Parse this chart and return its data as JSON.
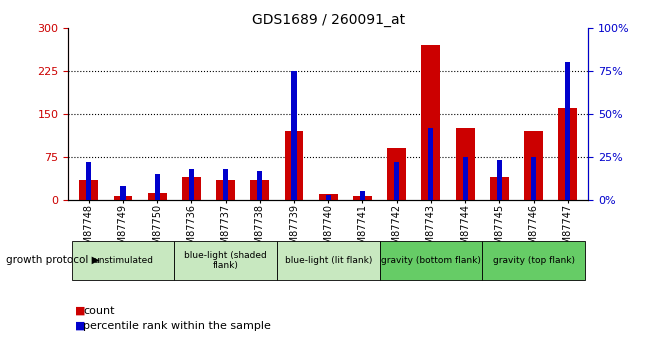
{
  "title": "GDS1689 / 260091_at",
  "samples": [
    "GSM87748",
    "GSM87749",
    "GSM87750",
    "GSM87736",
    "GSM87737",
    "GSM87738",
    "GSM87739",
    "GSM87740",
    "GSM87741",
    "GSM87742",
    "GSM87743",
    "GSM87744",
    "GSM87745",
    "GSM87746",
    "GSM87747"
  ],
  "counts": [
    35,
    7,
    12,
    40,
    35,
    35,
    120,
    10,
    7,
    90,
    270,
    125,
    40,
    120,
    160
  ],
  "percentile": [
    22,
    8,
    15,
    18,
    18,
    17,
    75,
    3,
    5,
    22,
    42,
    25,
    23,
    25,
    80
  ],
  "groups": [
    {
      "label": "unstimulated",
      "span": [
        0,
        3
      ],
      "color": "#c8e8c0"
    },
    {
      "label": "blue-light (shaded\nflank)",
      "span": [
        3,
        6
      ],
      "color": "#c8e8c0"
    },
    {
      "label": "blue-light (lit flank)",
      "span": [
        6,
        9
      ],
      "color": "#c8e8c0"
    },
    {
      "label": "gravity (bottom flank)",
      "span": [
        9,
        12
      ],
      "color": "#66cc66"
    },
    {
      "label": "gravity (top flank)",
      "span": [
        12,
        15
      ],
      "color": "#66cc66"
    }
  ],
  "ylim_left": [
    0,
    300
  ],
  "ylim_right": [
    0,
    100
  ],
  "yticks_left": [
    0,
    75,
    150,
    225,
    300
  ],
  "yticks_right": [
    0,
    25,
    50,
    75,
    100
  ],
  "bar_color_red": "#cc0000",
  "bar_color_blue": "#0000cc",
  "red_bar_width": 0.55,
  "blue_bar_width": 0.15,
  "tick_label_color_left": "#cc0000",
  "tick_label_color_right": "#0000cc",
  "xlabel_label": "growth protocol",
  "legend_count_label": "count",
  "legend_pct_label": "percentile rank within the sample",
  "grid_lines": [
    75,
    150,
    225
  ],
  "xtick_bg_color": "#d0d0d0"
}
